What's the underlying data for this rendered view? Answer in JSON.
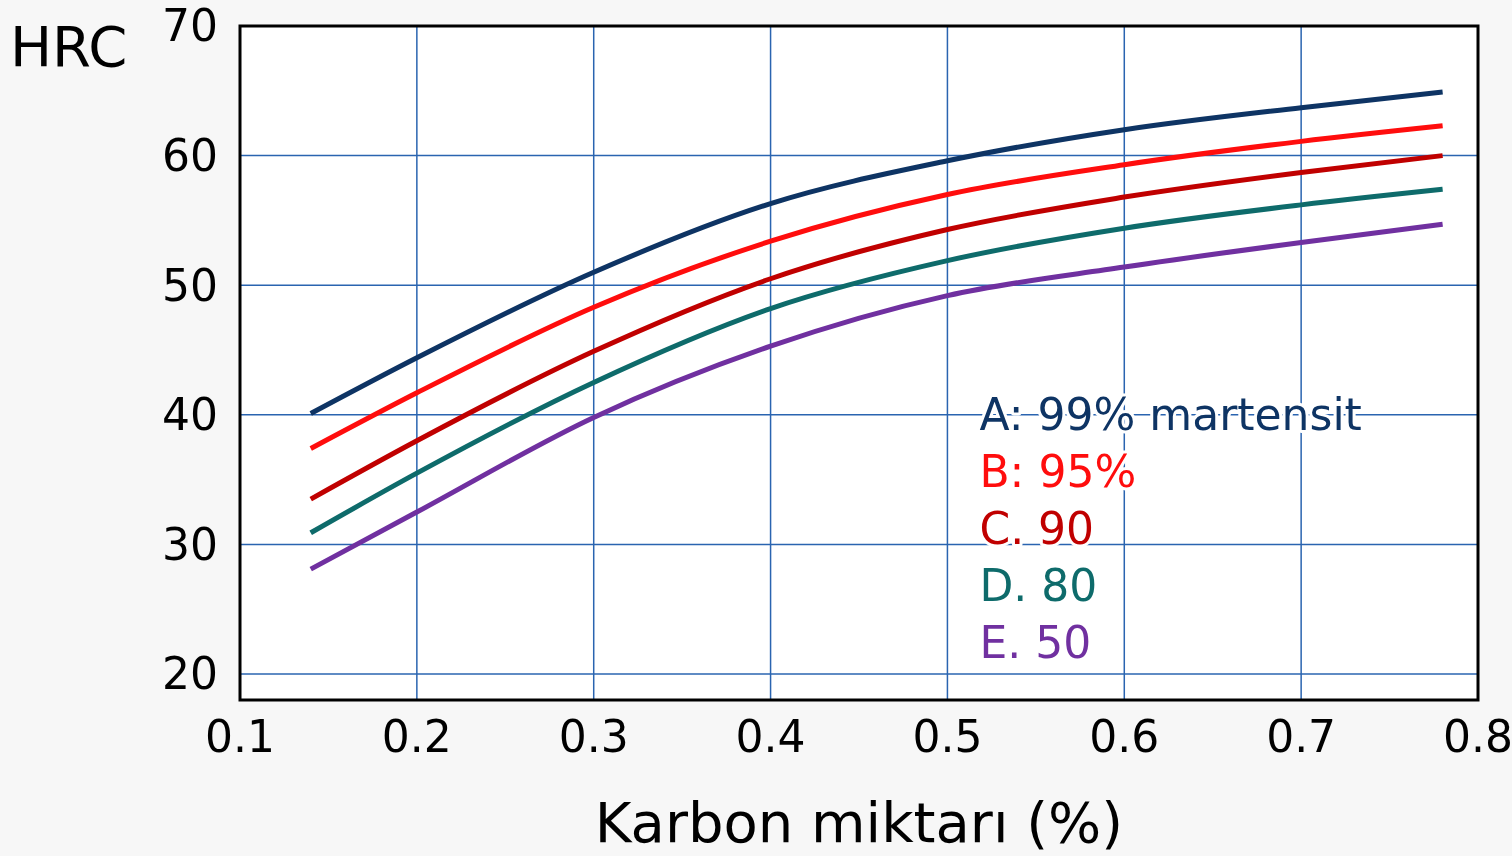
{
  "chart_data": {
    "type": "line",
    "xlabel": "Karbon miktarı (%)",
    "ylabel": "HRC",
    "xlim": [
      0.1,
      0.8
    ],
    "xticks": [
      0.1,
      0.2,
      0.3,
      0.4,
      0.5,
      0.6,
      0.7,
      0.8
    ],
    "ylim": [
      18,
      70
    ],
    "yticks": [
      20,
      30,
      40,
      50,
      60,
      70
    ],
    "grid": true,
    "legend": "bottom right",
    "marker": "none",
    "line_style": "solid",
    "x": [
      0.14,
      0.2,
      0.3,
      0.4,
      0.5,
      0.6,
      0.7,
      0.78
    ],
    "series": [
      {
        "name": "A: 99% martensit",
        "color": "#0e3464",
        "values": [
          40.1,
          44.4,
          51.0,
          56.3,
          59.6,
          62.0,
          63.7,
          64.9
        ]
      },
      {
        "name": "B: 95%",
        "color": "#ff0d0d",
        "values": [
          37.4,
          41.7,
          48.3,
          53.4,
          57.0,
          59.3,
          61.1,
          62.3
        ]
      },
      {
        "name": "C. 90",
        "color": "#c00000",
        "values": [
          33.5,
          38.0,
          44.9,
          50.5,
          54.3,
          56.8,
          58.7,
          60.0
        ]
      },
      {
        "name": "D. 80",
        "color": "#0e6b6b",
        "values": [
          30.9,
          35.5,
          42.5,
          48.2,
          51.9,
          54.4,
          56.2,
          57.4
        ]
      },
      {
        "name": "E. 50",
        "color": "#7030a0",
        "values": [
          28.1,
          32.5,
          39.8,
          45.3,
          49.2,
          51.4,
          53.3,
          54.7
        ]
      }
    ]
  }
}
